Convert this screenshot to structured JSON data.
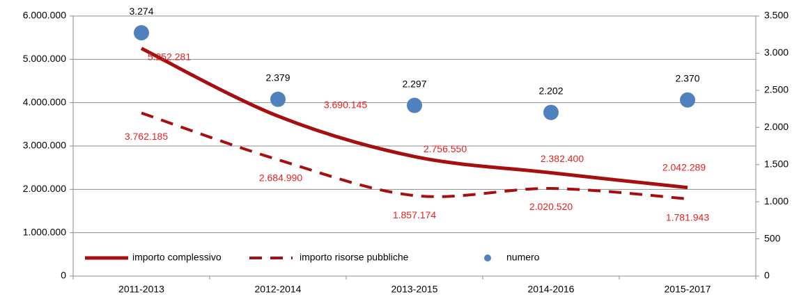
{
  "chart_data": {
    "type": "line",
    "categories": [
      "2011-2013",
      "2012-2014",
      "2013-2015",
      "2014-2016",
      "2015-2017"
    ],
    "series": [
      {
        "name": "importo complessivo",
        "color": "#a50f0f",
        "style": "solid",
        "values": [
          5252281,
          3690145,
          2756550,
          2382400,
          2042289
        ],
        "value_labels": [
          "5.252.281",
          "3.690.145",
          "2.756.550",
          "2.382.400",
          "2.042.289"
        ]
      },
      {
        "name": "importo risorse pubbliche",
        "color": "#a50f0f",
        "style": "dashed",
        "values": [
          3762185,
          2684990,
          1857174,
          2020520,
          1781943
        ],
        "value_labels": [
          "3.762.185",
          "2.684.990",
          "1.857.174",
          "2.020.520",
          "1.781.943"
        ]
      },
      {
        "name": "numero",
        "color": "#4f81bd",
        "type": "scatter",
        "axis": "y2",
        "values": [
          3274,
          2379,
          2297,
          2202,
          2370
        ],
        "value_labels": [
          "3.274",
          "2.379",
          "2.297",
          "2.202",
          "2.370"
        ]
      }
    ],
    "ylim": [
      0,
      6000000
    ],
    "yticks": [
      0,
      {
        "value": 1000000,
        "label": "1.000.000"
      },
      {
        "value": 2000000,
        "label": "2.000.000"
      },
      {
        "value": 3000000,
        "label": "3.000.000"
      },
      {
        "value": 4000000,
        "label": "4.000.000"
      },
      {
        "value": 5000000,
        "label": "5.000.000"
      },
      {
        "value": 6000000,
        "label": "6.000.000"
      }
    ],
    "y2lim": [
      0,
      3500
    ],
    "y2ticks": [
      0,
      500,
      {
        "value": 1000,
        "label": "1.000"
      },
      {
        "value": 1500,
        "label": "1.500"
      },
      {
        "value": 2000,
        "label": "2.000"
      },
      {
        "value": 2500,
        "label": "2.500"
      },
      {
        "value": 3000,
        "label": "3.000"
      },
      {
        "value": 3500,
        "label": "3.500"
      }
    ],
    "grid": true,
    "legend": "bottom-left"
  }
}
